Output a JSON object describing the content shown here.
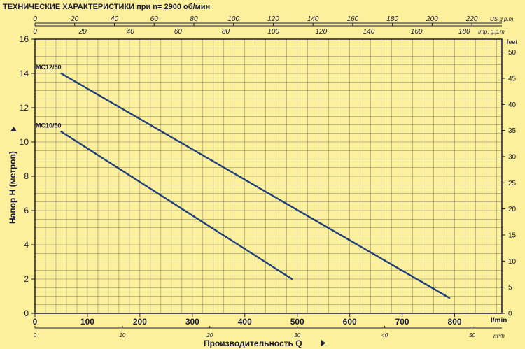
{
  "chart_data": {
    "type": "line",
    "title": "ТЕХНИЧЕСКИЕ ХАРАКТЕРИСТИКИ при n= 2900 об/мин",
    "xlabel": "Производительность Q",
    "ylabel": "Напор H  (метров)",
    "x_unit": "l/min",
    "y_right_unit": "feet",
    "x_ticks": [
      0,
      100,
      200,
      300,
      400,
      500,
      600,
      700,
      800
    ],
    "x_m3h_unit": "m³/h",
    "x_m3h_ticks": [
      0,
      10,
      20,
      30,
      40,
      50
    ],
    "top_us_unit": "US g.p.m.",
    "top_us_ticks": [
      0,
      20,
      40,
      60,
      80,
      100,
      120,
      140,
      160,
      180,
      200,
      220
    ],
    "top_imp_unit": "Imp. g.p.m.",
    "top_imp_ticks": [
      0,
      20,
      40,
      60,
      80,
      100,
      120,
      140,
      160,
      180
    ],
    "y_ticks": [
      0,
      2,
      4,
      6,
      8,
      10,
      12,
      14,
      16
    ],
    "y_feet_ticks": [
      0,
      5,
      10,
      15,
      20,
      25,
      30,
      35,
      40,
      45,
      50
    ],
    "xlim": [
      0,
      890
    ],
    "ylim": [
      0,
      16
    ],
    "grid": true,
    "series": [
      {
        "name": "MC12/50",
        "x": [
          50,
          790
        ],
        "y": [
          14.0,
          0.9
        ]
      },
      {
        "name": "MC10/50",
        "x": [
          50,
          490
        ],
        "y": [
          10.6,
          2.0
        ]
      }
    ]
  },
  "colors": {
    "background": "#fdf09c",
    "line": "#1f3f7a",
    "text": "#1a1a3a",
    "grid": "#555555"
  }
}
